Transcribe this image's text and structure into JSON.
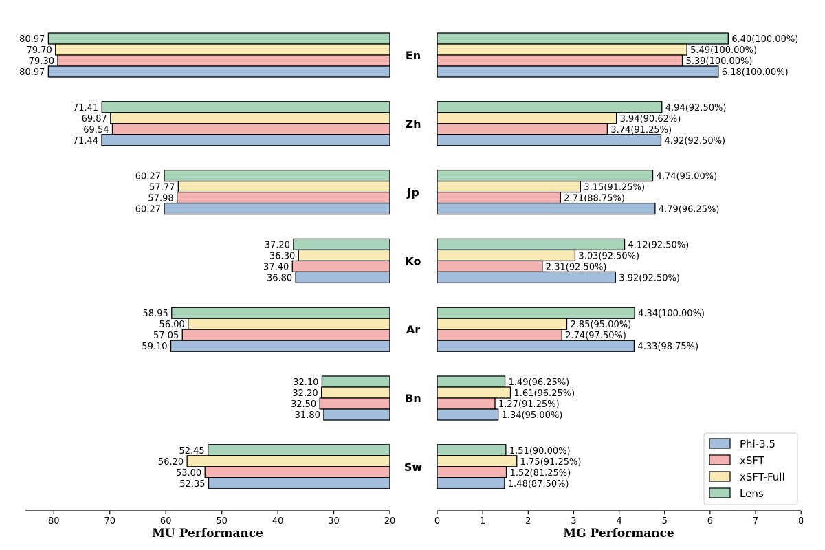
{
  "chart_data": [
    {
      "type": "bar",
      "orientation": "horizontal",
      "inverted_x": true,
      "xlabel": "MU Performance",
      "xlim": [
        20,
        85
      ],
      "xticks": [
        80,
        70,
        60,
        50,
        40,
        30,
        20
      ],
      "categories": [
        "En",
        "Zh",
        "Jp",
        "Ko",
        "Ar",
        "Bn",
        "Sw"
      ],
      "series": [
        {
          "name": "Lens",
          "color": "#a8d5b9",
          "values": [
            80.97,
            71.41,
            60.27,
            37.2,
            58.95,
            32.1,
            52.45
          ],
          "labels": [
            "80.97",
            "71.41",
            "60.27",
            "37.20",
            "58.95",
            "32.10",
            "52.45"
          ]
        },
        {
          "name": "xSFT-Full",
          "color": "#f8e9b5",
          "values": [
            79.7,
            69.87,
            57.77,
            36.3,
            56.0,
            32.2,
            56.2
          ],
          "labels": [
            "79.70",
            "69.87",
            "57.77",
            "36.30",
            "56.00",
            "32.20",
            "56.20"
          ]
        },
        {
          "name": "xSFT",
          "color": "#f3b3b0",
          "values": [
            79.3,
            69.54,
            57.98,
            37.4,
            57.05,
            32.5,
            53.0
          ],
          "labels": [
            "79.30",
            "69.54",
            "57.98",
            "37.40",
            "57.05",
            "32.50",
            "53.00"
          ]
        },
        {
          "name": "Phi-3.5",
          "color": "#a3bfdd",
          "values": [
            80.97,
            71.44,
            60.27,
            36.8,
            59.1,
            31.8,
            52.35
          ],
          "labels": [
            "80.97",
            "71.44",
            "60.27",
            "36.80",
            "59.10",
            "31.80",
            "52.35"
          ]
        }
      ]
    },
    {
      "type": "bar",
      "orientation": "horizontal",
      "xlabel": "MG Performance",
      "xlim": [
        0,
        8
      ],
      "xticks": [
        0,
        1,
        2,
        3,
        4,
        5,
        6,
        7,
        8
      ],
      "categories": [
        "En",
        "Zh",
        "Jp",
        "Ko",
        "Ar",
        "Bn",
        "Sw"
      ],
      "series": [
        {
          "name": "Lens",
          "color": "#a8d5b9",
          "values": [
            6.4,
            4.94,
            4.74,
            4.12,
            4.34,
            1.49,
            1.51
          ],
          "labels": [
            "6.40(100.00%)",
            "4.94(92.50%)",
            "4.74(95.00%)",
            "4.12(92.50%)",
            "4.34(100.00%)",
            "1.49(96.25%)",
            "1.51(90.00%)"
          ]
        },
        {
          "name": "xSFT-Full",
          "color": "#f8e9b5",
          "values": [
            5.49,
            3.94,
            3.15,
            3.03,
            2.85,
            1.61,
            1.75
          ],
          "labels": [
            "5.49(100.00%)",
            "3.94(90.62%)",
            "3.15(91.25%)",
            "3.03(92.50%)",
            "2.85(95.00%)",
            "1.61(96.25%)",
            "1.75(91.25%)"
          ]
        },
        {
          "name": "xSFT",
          "color": "#f3b3b0",
          "values": [
            5.39,
            3.74,
            2.71,
            2.31,
            2.74,
            1.27,
            1.52
          ],
          "labels": [
            "5.39(100.00%)",
            "3.74(91.25%)",
            "2.71(88.75%)",
            "2.31(92.50%)",
            "2.74(97.50%)",
            "1.27(91.25%)",
            "1.52(81.25%)"
          ]
        },
        {
          "name": "Phi-3.5",
          "color": "#a3bfdd",
          "values": [
            6.18,
            4.92,
            4.79,
            3.92,
            4.33,
            1.34,
            1.48
          ],
          "labels": [
            "6.18(100.00%)",
            "4.92(92.50%)",
            "4.79(96.25%)",
            "3.92(92.50%)",
            "4.33(98.75%)",
            "1.34(95.00%)",
            "1.48(87.50%)"
          ]
        }
      ]
    }
  ],
  "legend": {
    "position": "bottom-right",
    "items": [
      {
        "name": "Phi-3.5",
        "color": "#a3bfdd"
      },
      {
        "name": "xSFT",
        "color": "#f3b3b0"
      },
      {
        "name": "xSFT-Full",
        "color": "#f8e9b5"
      },
      {
        "name": "Lens",
        "color": "#a8d5b9"
      }
    ]
  }
}
